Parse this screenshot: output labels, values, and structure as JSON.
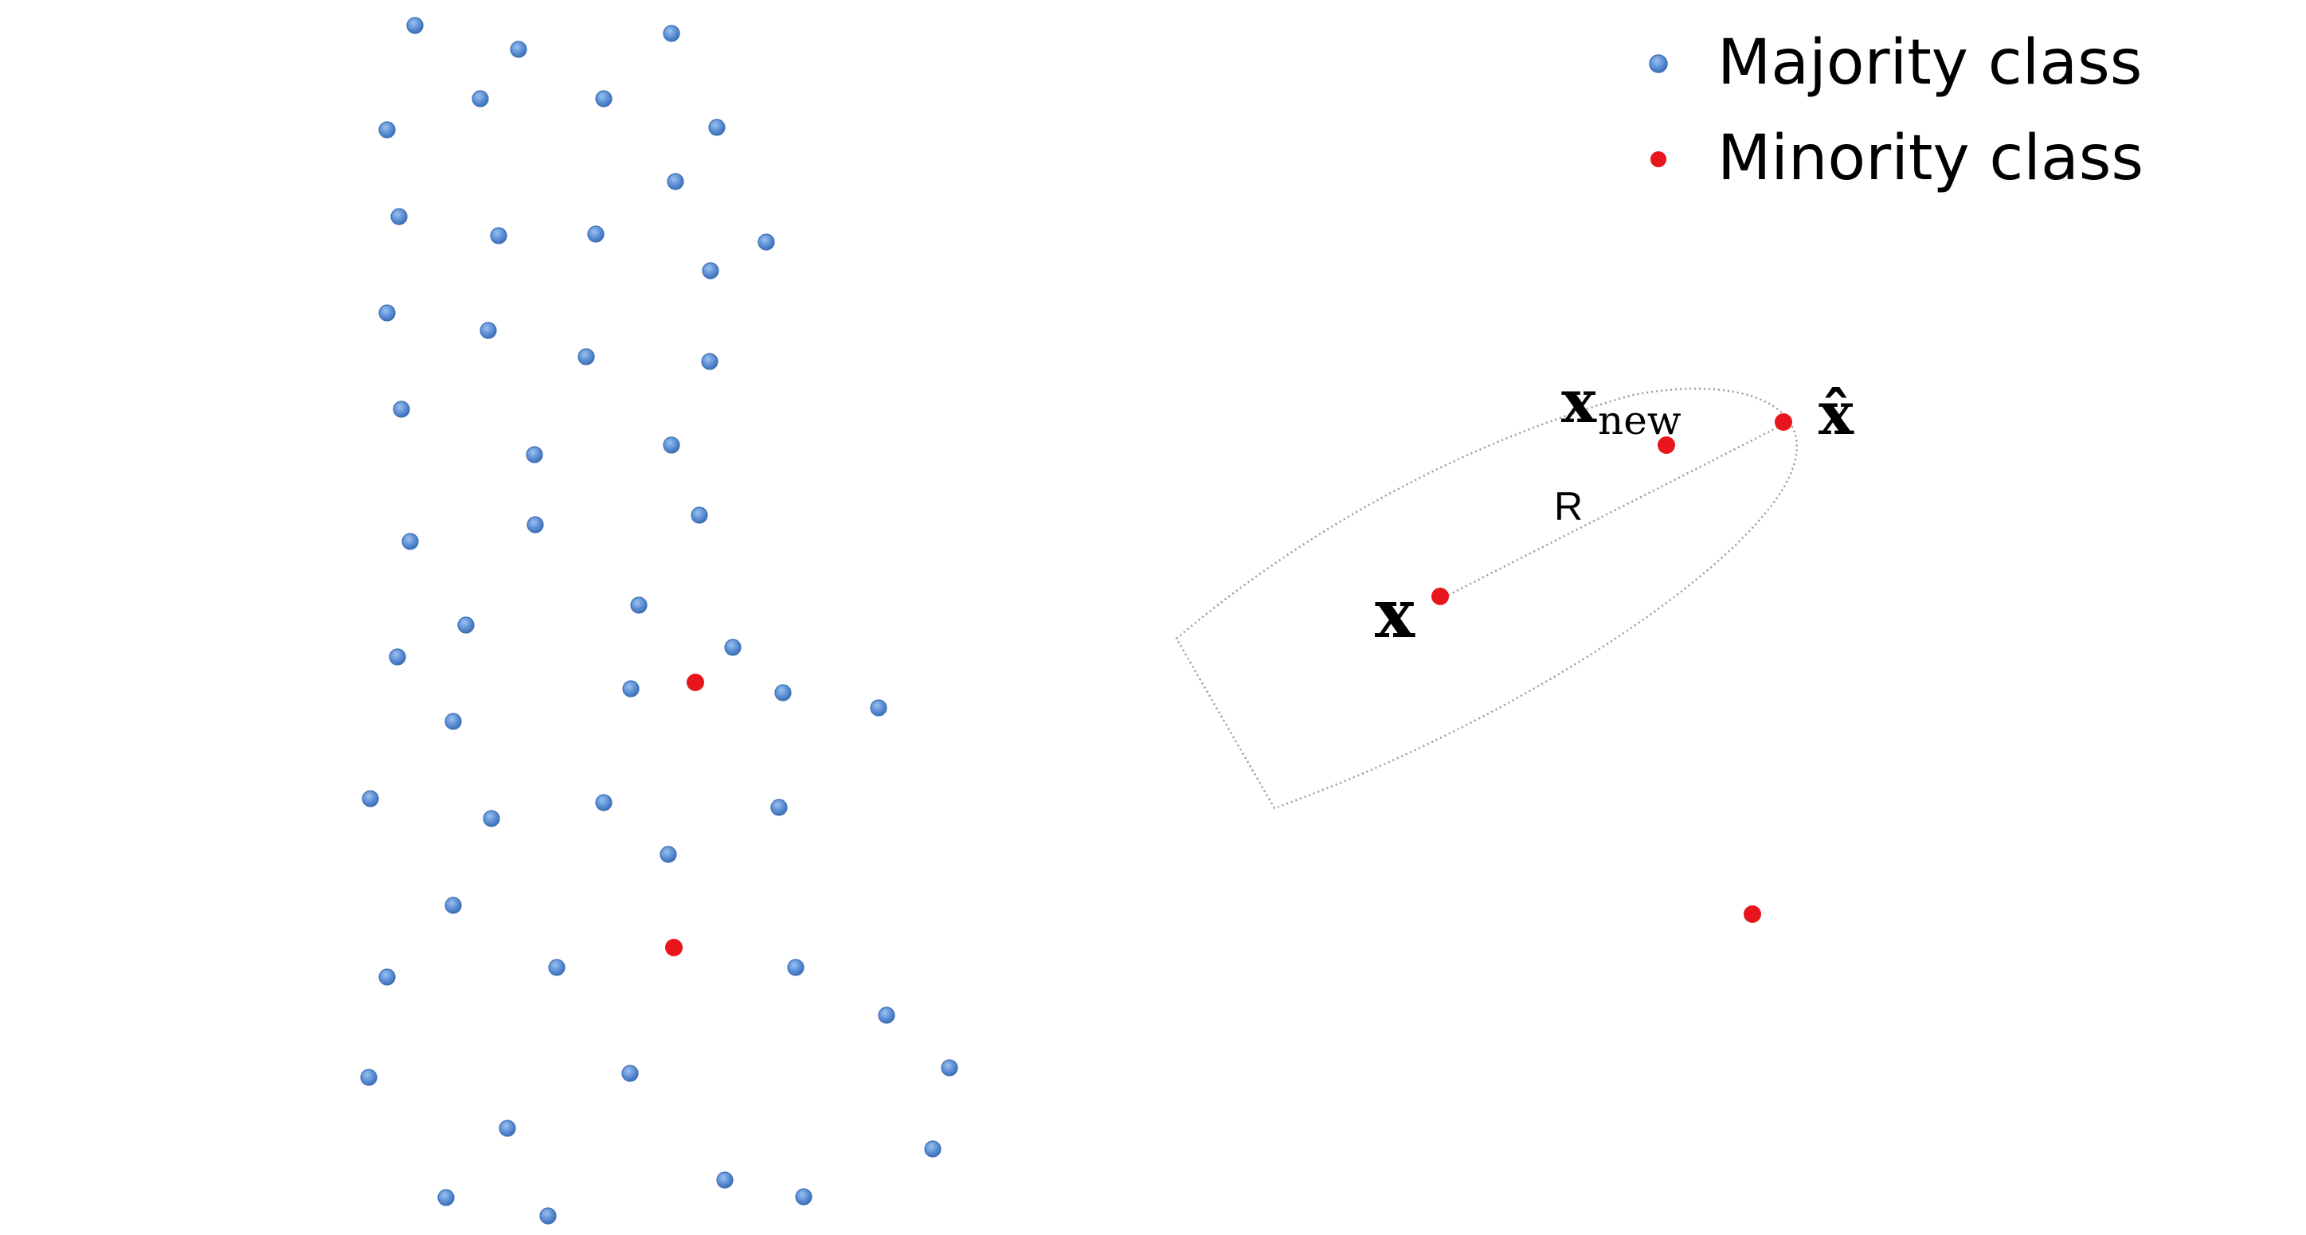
{
  "legend": {
    "majority_label": "Majority class",
    "minority_label": "Minority class",
    "majority_color": "#5b8fd6",
    "minority_color": "#e8161c"
  },
  "labels": {
    "x": "x",
    "x_new_base": "x",
    "x_new_sub": "new",
    "x_hat": "x̂",
    "radius": "R"
  },
  "colors": {
    "majority": "#5b8fd6",
    "majority_edge": "#3f6fb5",
    "minority": "#e8161c",
    "region_outline": "#9a9a9a"
  }
}
